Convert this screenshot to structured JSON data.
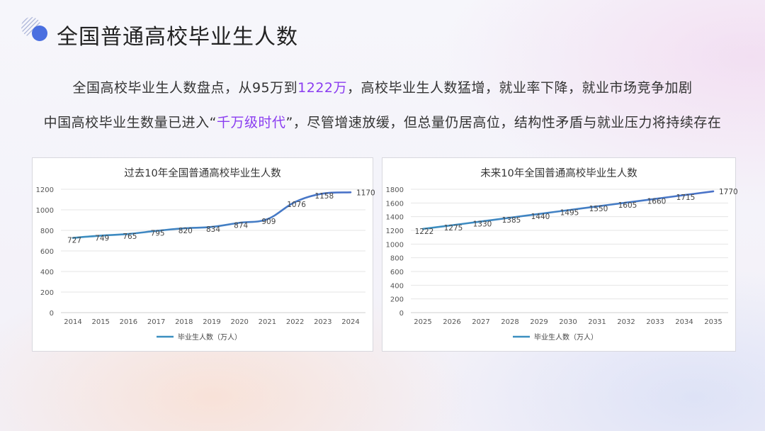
{
  "page": {
    "title": "全国普通高校毕业生人数"
  },
  "intro": {
    "line1": {
      "before": "全国高校毕业生人数盘点，从95万到",
      "highlight": "1222万",
      "after": "，高校毕业生人数猛增，就业率下降，就业市场竞争加剧"
    },
    "line2": {
      "before": "中国高校毕业生数量已进入“",
      "highlight": "千万级时代",
      "after": "”，尽管增速放缓，但总量仍居高位，结构性矛盾与就业压力将持续存在"
    }
  },
  "colors": {
    "accent": "#4a6fe0",
    "highlight": "#8a3cf0",
    "line_start": "#3b8fc0",
    "line_end": "#4a72c8"
  },
  "chart_data": [
    {
      "type": "line",
      "title": "过去10年全国普通高校毕业生人数",
      "categories": [
        "2014",
        "2015",
        "2016",
        "2017",
        "2018",
        "2019",
        "2020",
        "2021",
        "2022",
        "2023",
        "2024"
      ],
      "series": [
        {
          "name": "毕业生人数（万人）",
          "values": [
            727,
            749,
            765,
            795,
            820,
            834,
            874,
            909,
            1076,
            1158,
            1170
          ]
        }
      ],
      "y_ticks": [
        0,
        200,
        400,
        600,
        800,
        1000,
        1200
      ],
      "ylim": [
        0,
        1200
      ],
      "grid": true,
      "legend": "bottom",
      "smooth": true
    },
    {
      "type": "line",
      "title": "未来10年全国普通高校毕业生人数",
      "categories": [
        "2025",
        "2026",
        "2027",
        "2028",
        "2029",
        "2030",
        "2031",
        "2032",
        "2033",
        "2034",
        "2035"
      ],
      "series": [
        {
          "name": "毕业生人数（万人）",
          "values": [
            1222,
            1275,
            1330,
            1385,
            1440,
            1495,
            1550,
            1605,
            1660,
            1715,
            1770
          ]
        }
      ],
      "y_ticks": [
        0,
        200,
        400,
        600,
        800,
        1000,
        1200,
        1400,
        1600,
        1800
      ],
      "ylim": [
        0,
        1800
      ],
      "grid": true,
      "legend": "bottom",
      "smooth": true
    }
  ]
}
